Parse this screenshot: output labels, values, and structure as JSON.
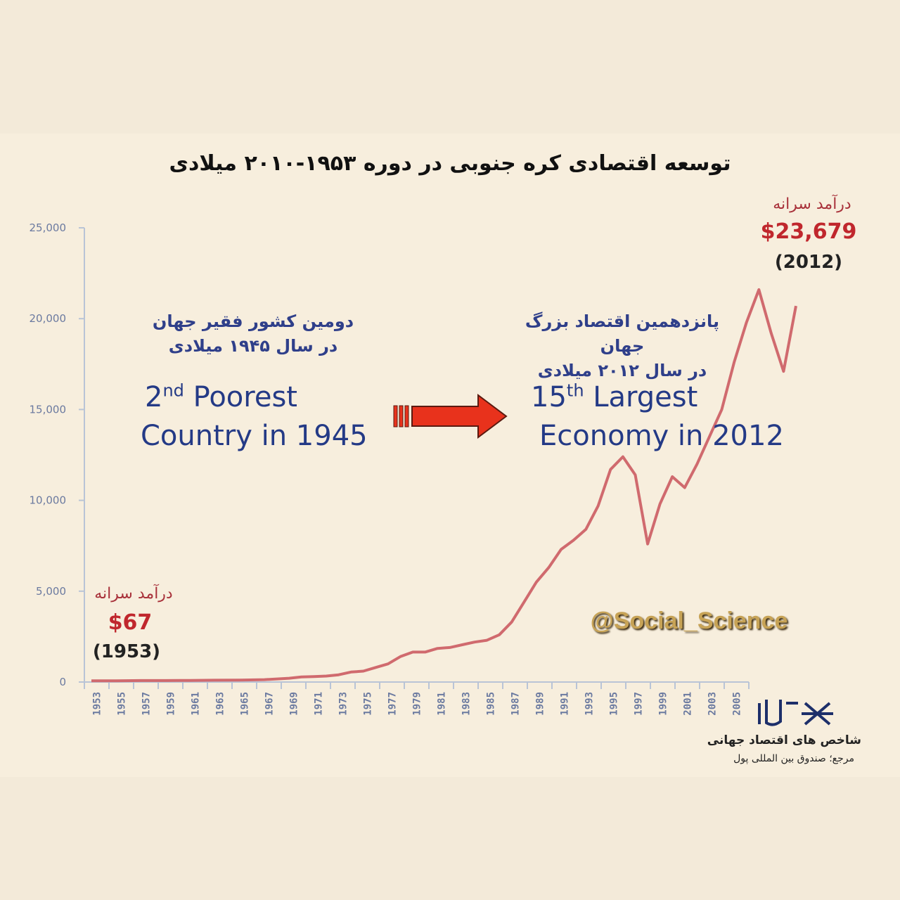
{
  "title": "توسعه اقتصادی کره جنوبی در دوره ۱۹۵۳-۲۰۱۰ میلادی",
  "left_annotation": {
    "fa_line1": "دومین کشور فقیر جهان",
    "fa_line2": "در سال ۱۹۴۵ میلادی",
    "en_rank": "2",
    "en_suffix": "nd",
    "en_rest": " Poorest",
    "en_line2": "Country in 1945"
  },
  "right_annotation": {
    "fa_line1": "پانزدهمین اقتصاد بزرگ جهان",
    "fa_line2": "در سال ۲۰۱۲ میلادی",
    "en_rank": "15",
    "en_suffix": "th",
    "en_rest": " Largest",
    "en_line2": "Economy in 2012"
  },
  "start_label": {
    "fa": "درآمد سرانه",
    "amount": "$67",
    "year": "(1953)"
  },
  "end_label": {
    "fa": "درآمد سرانه",
    "amount": "$23,679",
    "year": "(2012)"
  },
  "handle": "@Social_Science",
  "footer": {
    "line1": "شاخص های اقتصاد جهانی",
    "line2": "مرجع؛ صندوق بین المللی پول"
  },
  "colors": {
    "line": "#d06a6e",
    "axis": "#b9c4d6",
    "arrow": "#e8321c",
    "tick_text": "#6b7aa0"
  },
  "icons": [
    "right-arrow-icon",
    "logo-icon"
  ],
  "chart_data": {
    "type": "line",
    "title": "توسعه اقتصادی کره جنوبی در دوره ۱۹۵۳-۲۰۱۰ میلادی",
    "xlabel": "",
    "ylabel": "",
    "ylim": [
      0,
      25000
    ],
    "yticks": [
      0,
      5000,
      10000,
      15000,
      20000,
      25000
    ],
    "ytick_labels": [
      "0",
      "5,000",
      "10,000",
      "15,000",
      "20,000",
      "25,000"
    ],
    "xtick_labels": [
      "1953",
      "1955",
      "1957",
      "1959",
      "1961",
      "1963",
      "1965",
      "1967",
      "1969",
      "1971",
      "1973",
      "1975",
      "1977",
      "1979",
      "1981",
      "1983",
      "1985",
      "1987",
      "1989",
      "1991",
      "1993",
      "1995",
      "1997",
      "1999",
      "2001",
      "2003",
      "2005"
    ],
    "grid": false,
    "series": [
      {
        "x": [
          1953,
          1955,
          1957,
          1959,
          1961,
          1963,
          1965,
          1967,
          1969,
          1970,
          1971,
          1972,
          1973,
          1974,
          1975,
          1976,
          1977,
          1978,
          1979,
          1980,
          1981,
          1982,
          1983,
          1984,
          1985,
          1986,
          1987,
          1988,
          1989,
          1990,
          1991,
          1992,
          1993,
          1994,
          1995,
          1996,
          1997,
          1998,
          1999,
          2000,
          2001,
          2002,
          2003,
          2004,
          2005,
          2006,
          2007,
          2008,
          2009,
          2010
        ],
        "values": [
          67,
          70,
          80,
          80,
          90,
          100,
          110,
          130,
          210,
          280,
          300,
          330,
          400,
          550,
          600,
          800,
          1000,
          1400,
          1650,
          1650,
          1850,
          1900,
          2050,
          2200,
          2300,
          2600,
          3300,
          4400,
          5500,
          6300,
          7300,
          7800,
          8400,
          9700,
          11700,
          12400,
          11400,
          7600,
          9800,
          11300,
          10700,
          12000,
          13500,
          15000,
          17600,
          19800,
          21600,
          19200,
          17100,
          20700
        ]
      }
    ]
  }
}
